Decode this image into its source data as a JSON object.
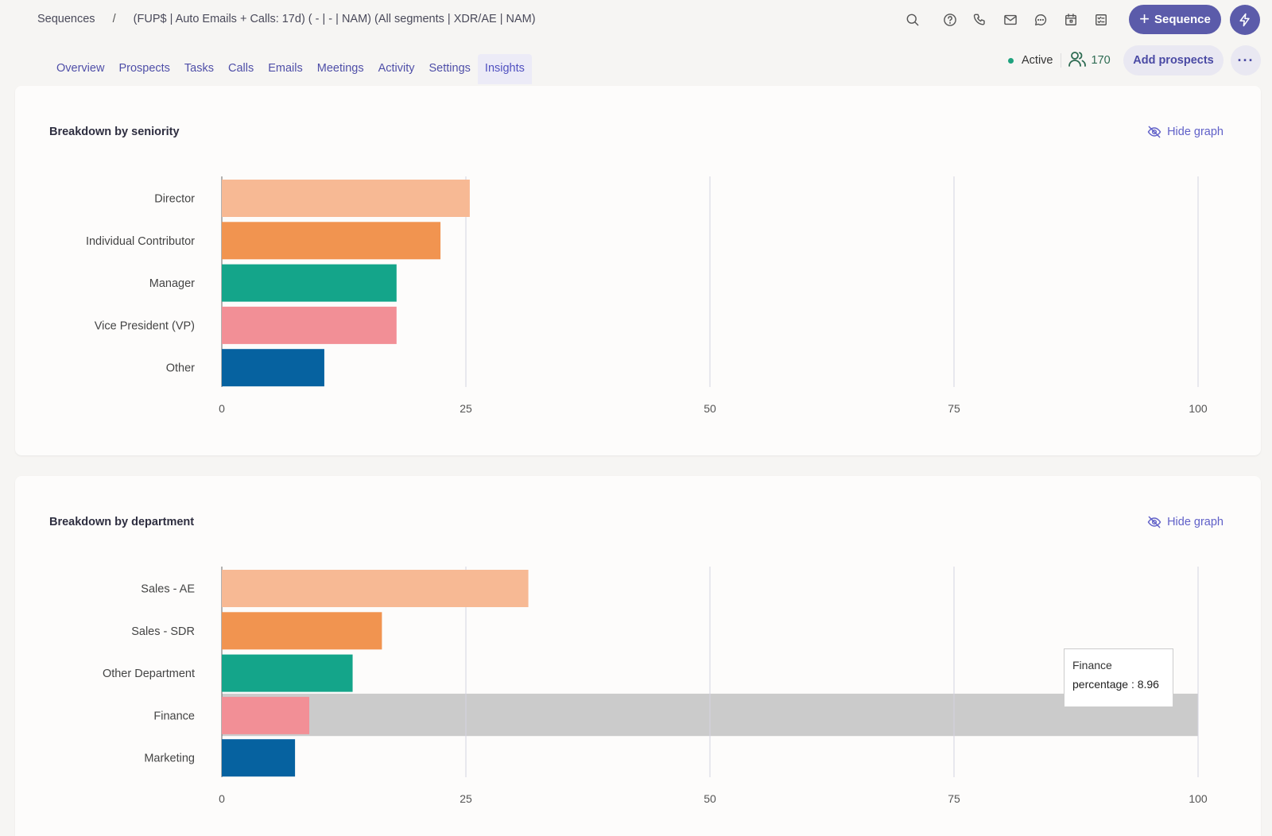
{
  "header": {
    "breadcrumb_root": "Sequences",
    "breadcrumb_sep": "/",
    "breadcrumb_current": "(FUP$ | Auto Emails + Calls: 17d) ( - | - | NAM) (All segments | XDR/AE | NAM)",
    "sequence_button": "Sequence",
    "icons": [
      "search-icon",
      "help-icon",
      "phone-icon",
      "mail-icon",
      "chat-icon",
      "calendar-icon",
      "task-icon",
      "bolt-icon"
    ]
  },
  "tabs": [
    {
      "label": "Overview"
    },
    {
      "label": "Prospects"
    },
    {
      "label": "Tasks"
    },
    {
      "label": "Calls"
    },
    {
      "label": "Emails"
    },
    {
      "label": "Meetings"
    },
    {
      "label": "Activity"
    },
    {
      "label": "Settings"
    },
    {
      "label": "Insights",
      "active": true
    }
  ],
  "status": {
    "label": "Active",
    "prospect_count": "170",
    "add_prospects": "Add prospects",
    "more": "···"
  },
  "colors": {
    "accent": "#5b5baa",
    "bars": [
      "#f7b994",
      "#f19450",
      "#14a58a",
      "#f28f96",
      "#0662a0"
    ],
    "highlight": "#cbcbcb"
  },
  "hide_graph_label": "Hide graph",
  "tooltip": {
    "title": "Finance",
    "text": "percentage : 8.96"
  },
  "chart_data": [
    {
      "type": "bar",
      "orientation": "horizontal",
      "title": "Breakdown by seniority",
      "categories": [
        "Director",
        "Individual Contributor",
        "Manager",
        "Vice President (VP)",
        "Other"
      ],
      "values": [
        25.4,
        22.4,
        17.9,
        17.9,
        10.5
      ],
      "xlim": [
        0,
        100
      ],
      "xticks": [
        "0",
        "25",
        "50",
        "75",
        "100"
      ],
      "grid": true
    },
    {
      "type": "bar",
      "orientation": "horizontal",
      "title": "Breakdown by department",
      "categories": [
        "Sales - AE",
        "Sales - SDR",
        "Other Department",
        "Finance",
        "Marketing"
      ],
      "values": [
        31.4,
        16.4,
        13.4,
        8.96,
        7.5
      ],
      "xlim": [
        0,
        100
      ],
      "xticks": [
        "0",
        "25",
        "50",
        "75",
        "100"
      ],
      "grid": true,
      "highlighted_category": "Finance"
    }
  ]
}
